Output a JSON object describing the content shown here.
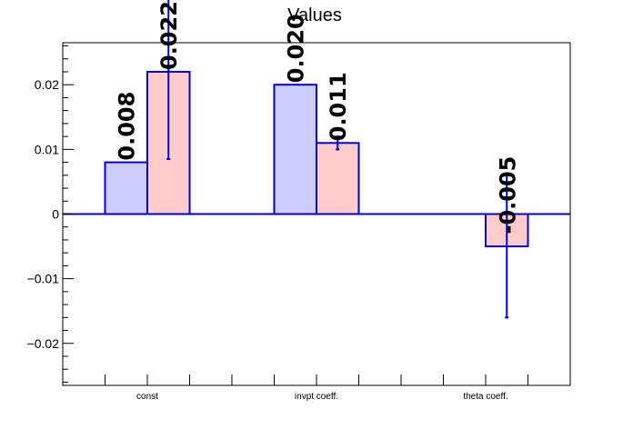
{
  "chart_data": {
    "type": "bar",
    "title": "Values",
    "xlabel": "",
    "ylabel": "",
    "categories": [
      "const",
      "invpt coeff.",
      "theta coeff."
    ],
    "series": [
      {
        "values": [
          0.008,
          0.02,
          0.0
        ],
        "fill": "#ccccff",
        "stroke": "#0000cc",
        "data_labels": [
          "0.008",
          "0.020",
          ""
        ]
      },
      {
        "values": [
          0.022,
          0.011,
          -0.005
        ],
        "errors": [
          0.0135,
          0.001,
          0.011
        ],
        "fill": "#ffcccc",
        "stroke": "#0000cc",
        "data_labels": [
          "0.022",
          "0.011",
          "-0.005"
        ]
      }
    ],
    "ylim": [
      -0.0265,
      0.0265
    ],
    "yticks": [
      -0.02,
      -0.01,
      0,
      0.01,
      0.02
    ],
    "ytick_labels": [
      "−0.02",
      "−0.01",
      "0",
      "0.01",
      "0.02"
    ],
    "grid": false,
    "legend": "none",
    "baseline_color": "#0000cc",
    "error_bar_color": "#0000cc"
  }
}
